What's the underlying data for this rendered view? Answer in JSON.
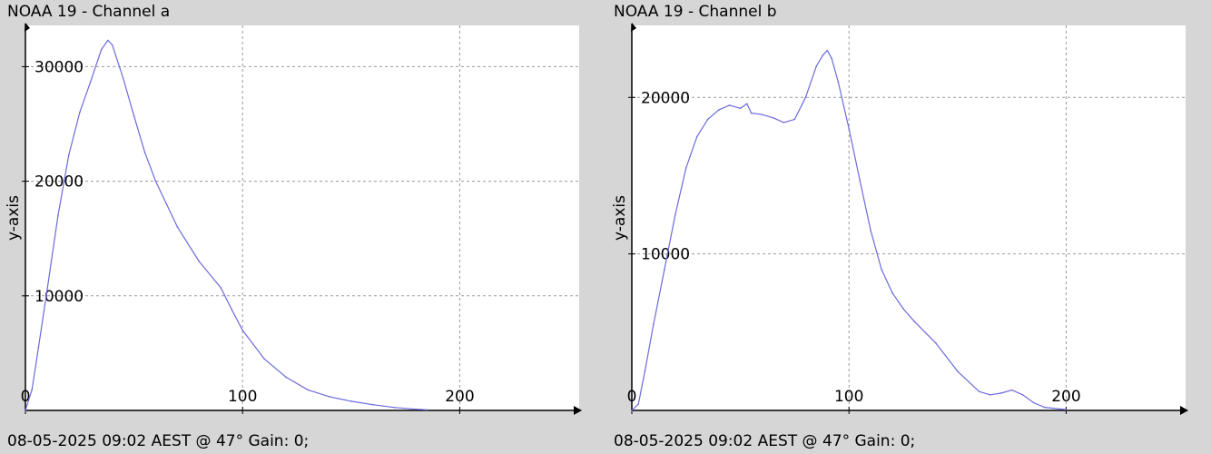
{
  "charts": [
    {
      "title": "NOAA 19 - Channel a",
      "footer": "08-05-2025 09:02 AEST @ 47° Gain: 0;"
    },
    {
      "title": "NOAA 19 - Channel b",
      "footer": "08-05-2025 09:02 AEST @ 47° Gain: 0;"
    }
  ],
  "colors": {
    "background": "#d6d6d6",
    "plot_area": "#ffffff",
    "line": "#6b6bdc",
    "grid": "#9a9a9a",
    "axis": "#000000"
  },
  "chart_data": [
    {
      "type": "line",
      "title": "NOAA 19 - Channel a",
      "xlabel": "",
      "ylabel": "y-axis",
      "xlim": [
        0,
        255
      ],
      "ylim": [
        0,
        33600
      ],
      "xticks": [
        0,
        100,
        200
      ],
      "yticks": [
        10000,
        20000,
        30000
      ],
      "grid": true,
      "series": [
        {
          "x": [
            0,
            3,
            6,
            10,
            15,
            20,
            25,
            30,
            35,
            38,
            40,
            45,
            50,
            55,
            60,
            65,
            70,
            80,
            90,
            95,
            100,
            110,
            120,
            130,
            140,
            150,
            160,
            170,
            180,
            185
          ],
          "y": [
            0,
            1800,
            5500,
            10500,
            17000,
            22300,
            26000,
            28700,
            31500,
            32300,
            31900,
            29000,
            25700,
            22500,
            20000,
            18000,
            16000,
            13000,
            10700,
            8800,
            7000,
            4500,
            2900,
            1800,
            1200,
            800,
            500,
            250,
            100,
            50
          ]
        }
      ]
    },
    {
      "type": "line",
      "title": "NOAA 19 - Channel b",
      "xlabel": "",
      "ylabel": "y-axis",
      "xlim": [
        0,
        255
      ],
      "ylim": [
        0,
        24600
      ],
      "xticks": [
        0,
        100,
        200
      ],
      "yticks": [
        10000,
        20000
      ],
      "grid": true,
      "series": [
        {
          "x": [
            0,
            3,
            6,
            10,
            15,
            20,
            25,
            30,
            35,
            40,
            45,
            50,
            53,
            55,
            60,
            65,
            70,
            75,
            80,
            85,
            88,
            90,
            92,
            95,
            100,
            105,
            110,
            115,
            120,
            125,
            130,
            140,
            150,
            160,
            165,
            170,
            175,
            180,
            185,
            190,
            200
          ],
          "y": [
            0,
            400,
            2500,
            5500,
            9000,
            12500,
            15500,
            17500,
            18600,
            19200,
            19500,
            19300,
            19600,
            19000,
            18900,
            18700,
            18400,
            18600,
            20000,
            22000,
            22700,
            23000,
            22500,
            21000,
            18000,
            14700,
            11500,
            9000,
            7500,
            6500,
            5700,
            4300,
            2500,
            1200,
            1000,
            1100,
            1300,
            1000,
            500,
            200,
            50
          ]
        }
      ]
    }
  ]
}
